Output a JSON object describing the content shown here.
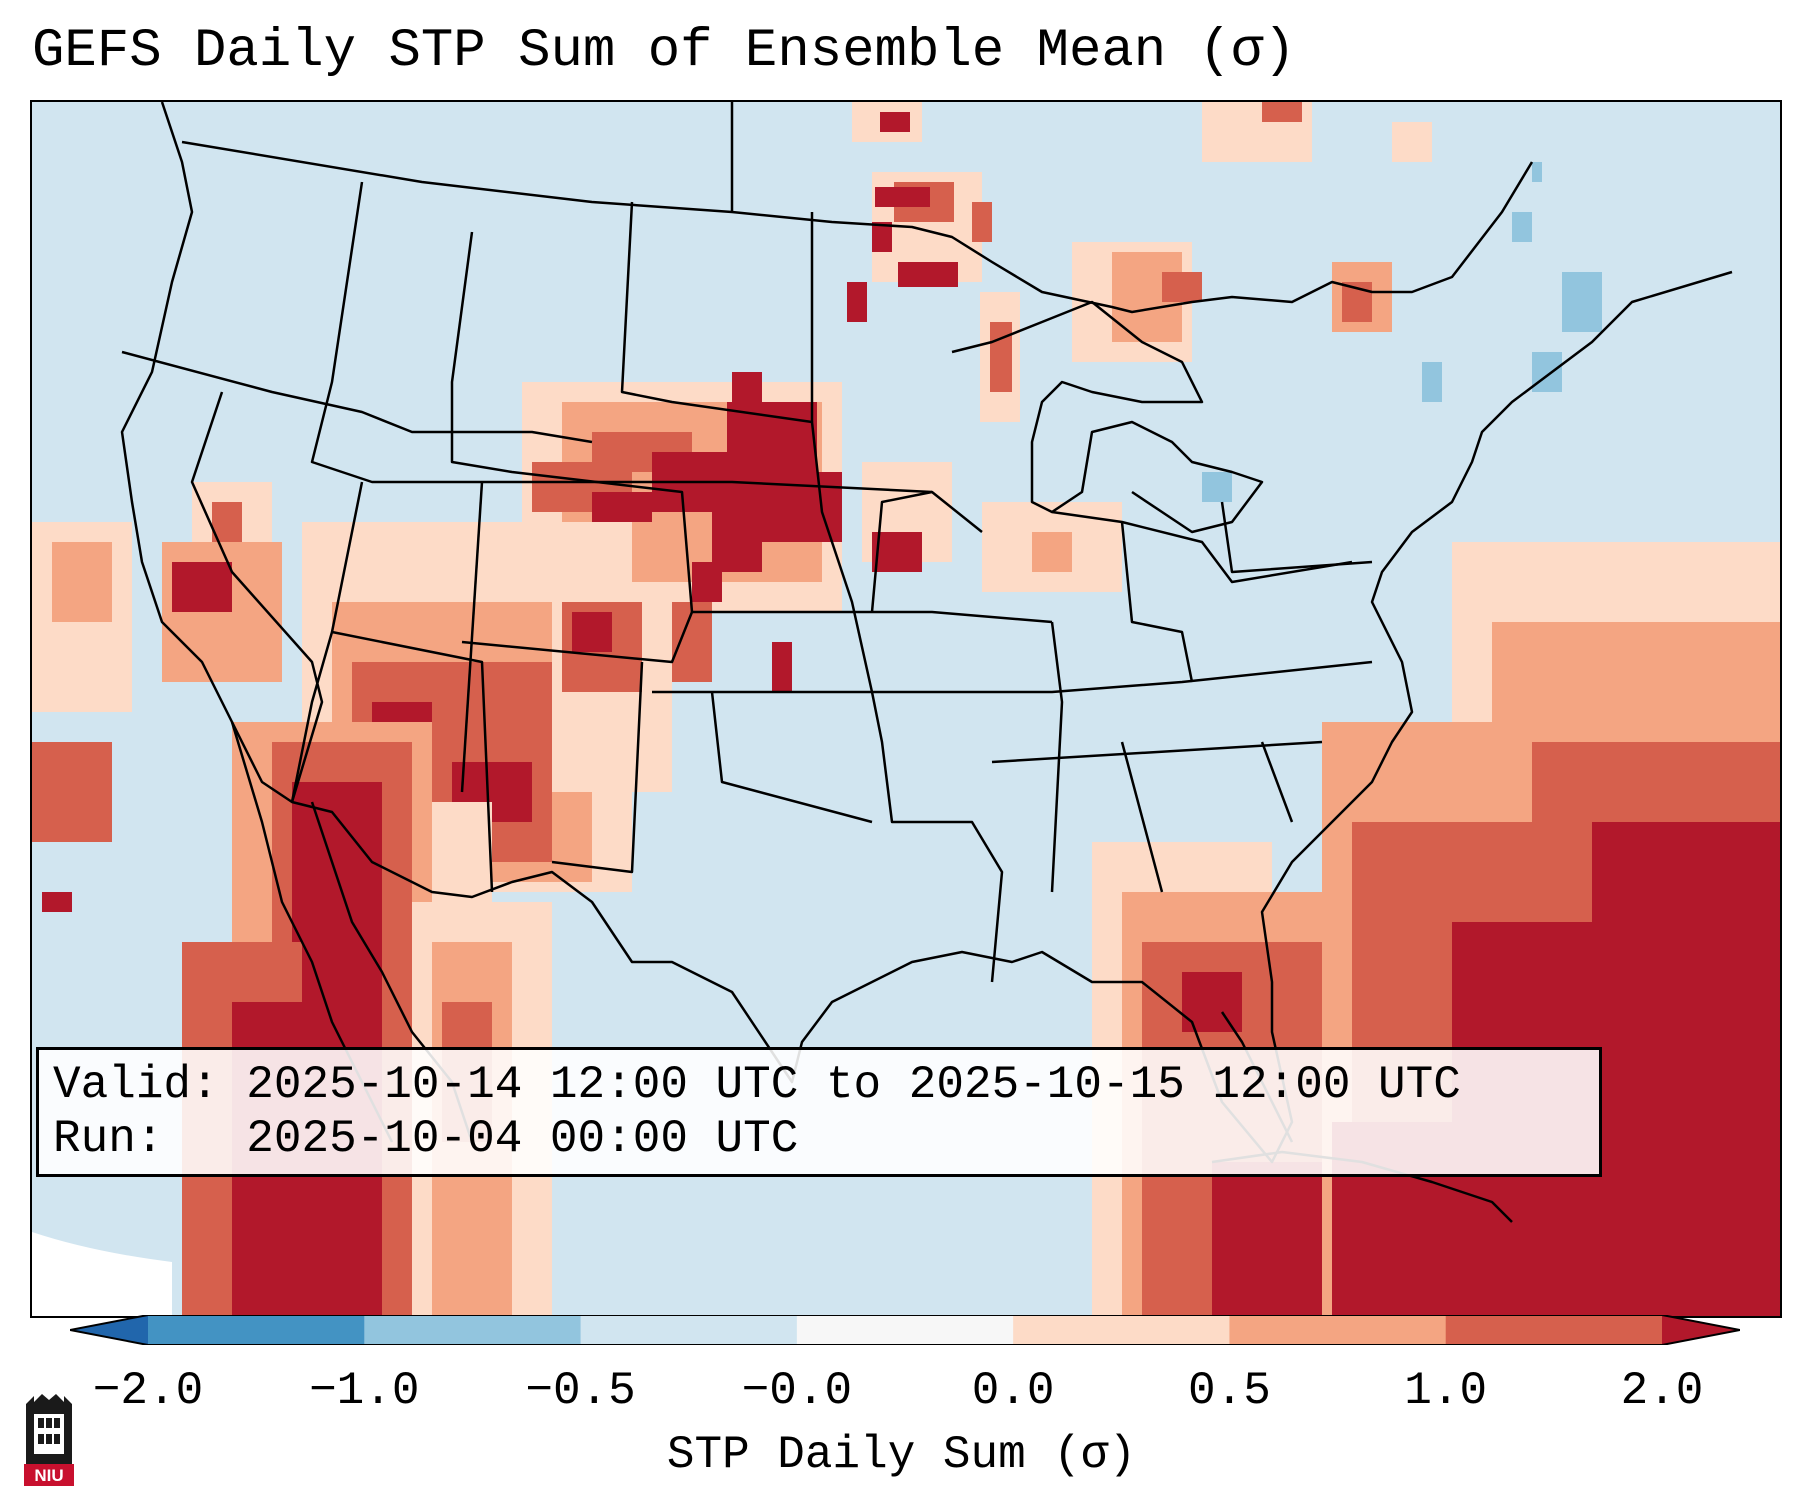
{
  "title": "GEFS Daily STP Sum of Ensemble Mean (σ)",
  "info": {
    "valid_label": "Valid:",
    "valid_value": "2025-10-14 12:00 UTC to 2025-10-15 12:00 UTC",
    "run_label": "Run:",
    "run_value": "2025-10-04 00:00 UTC"
  },
  "colorbar": {
    "label": "STP Daily Sum (σ)",
    "ticks": [
      "−2.0",
      "−1.0",
      "−0.5",
      "−0.0",
      "0.0",
      "0.5",
      "1.0",
      "2.0"
    ],
    "bin_colors": [
      "#2166ac",
      "#4393c3",
      "#92c5de",
      "#d1e5f0",
      "#f7f7f7",
      "#fddbc7",
      "#f4a582",
      "#d6604d",
      "#b2182b"
    ]
  },
  "colors": {
    "background_level": "#d1e5f0",
    "low_positive": "#fddbc7",
    "mid_positive": "#f4a582",
    "high_positive": "#d6604d",
    "max_positive": "#b2182b",
    "low_negative": "#92c5de"
  },
  "logo": {
    "text": "NIU",
    "color": "#c8102e"
  }
}
